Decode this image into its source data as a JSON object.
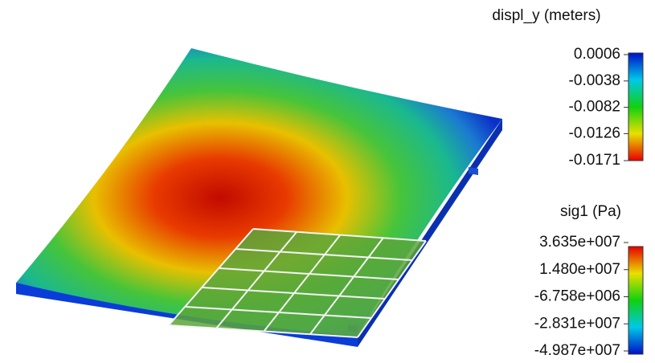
{
  "legends": [
    {
      "title": "displ_y (meters)",
      "ticks": [
        0.0006,
        -0.0038,
        -0.0082,
        -0.0126,
        -0.0171
      ]
    },
    {
      "title": "sig1 (Pa)",
      "ticks": [
        {
          "value": 36350000,
          "label": "3.635e+007"
        },
        {
          "value": 14800000,
          "label": "1.480e+007"
        },
        {
          "value": -6758000,
          "label": "-6.758e+006"
        },
        {
          "value": -28310000,
          "label": "-2.831e+007"
        },
        {
          "value": -49870000,
          "label": "-4.987e+007"
        }
      ]
    }
  ]
}
